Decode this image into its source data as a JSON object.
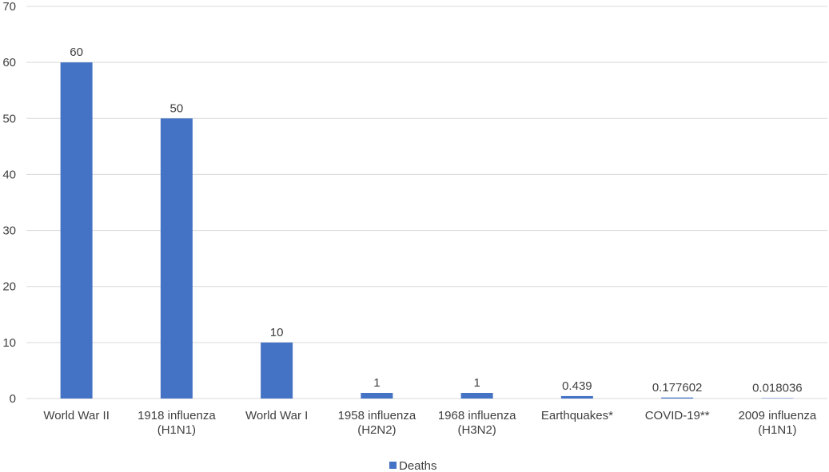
{
  "chart_data": {
    "type": "bar",
    "categories": [
      [
        "World War II"
      ],
      [
        "1918 influenza",
        "(H1N1)"
      ],
      [
        "World War I"
      ],
      [
        "1958 influenza",
        "(H2N2)"
      ],
      [
        "1968 influenza",
        "(H3N2)"
      ],
      [
        "Earthquakes*"
      ],
      [
        "COVID-19**"
      ],
      [
        "2009 influenza",
        "(H1N1)"
      ]
    ],
    "series": [
      {
        "name": "Deaths",
        "values": [
          60,
          50,
          10,
          1,
          1,
          0.439,
          0.177602,
          0.018036
        ],
        "value_labels": [
          "60",
          "50",
          "10",
          "1",
          "1",
          "0.439",
          "0.177602",
          "0.018036"
        ],
        "color": "#4472C4"
      }
    ],
    "title": "",
    "xlabel": "",
    "ylabel": "",
    "ylim": [
      0,
      70
    ],
    "yticks": [
      0,
      10,
      20,
      30,
      40,
      50,
      60,
      70
    ],
    "grid": true,
    "legend": "bottom-center"
  }
}
